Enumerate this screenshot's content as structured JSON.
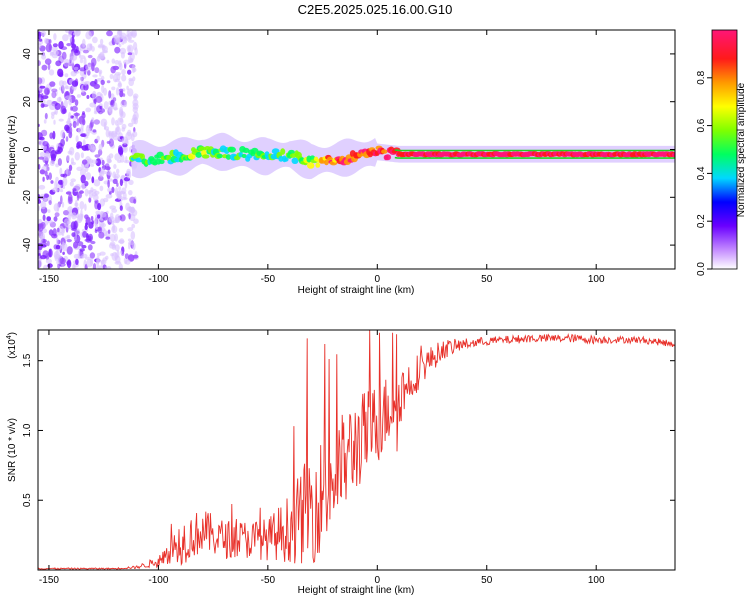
{
  "title": "C2E5.2025.025.16.00.G10",
  "chart_data": [
    {
      "type": "heatmap",
      "xlabel": "Height of straight line (km)",
      "ylabel": "Frequency (Hz)",
      "xlim": [
        -155,
        136
      ],
      "ylim": [
        -50,
        50
      ],
      "xticks": [
        -150,
        -100,
        -50,
        0,
        50,
        100
      ],
      "yticks": [
        -40,
        -20,
        0,
        20,
        40
      ],
      "colorbar": {
        "label": "Normalized spectral amplitude",
        "range": [
          0,
          1
        ],
        "ticks": [
          "0.0",
          "0.2",
          "0.4",
          "0.6",
          "0.8"
        ]
      },
      "ridge": {
        "x": [
          -112,
          -100,
          -90,
          -80,
          -70,
          -60,
          -50,
          -40,
          -30,
          -20,
          -10,
          0,
          10,
          50,
          75,
          90,
          100,
          136
        ],
        "y": [
          -4,
          -4,
          -3,
          -1,
          -1,
          -2,
          -3,
          -2,
          -5,
          -4,
          -3,
          -1,
          -2,
          -2,
          -2,
          -2,
          -2,
          -2
        ],
        "amplitude": [
          0.4,
          0.4,
          0.45,
          0.5,
          0.45,
          0.4,
          0.4,
          0.45,
          0.55,
          0.8,
          0.8,
          0.85,
          0.9,
          0.95,
          0.9,
          0.95,
          0.9,
          0.9
        ]
      },
      "noise_region_x": [
        -155,
        -110
      ],
      "grid": false
    },
    {
      "type": "line",
      "xlabel": "Height of straight line (km)",
      "ylabel": "SNR (10 * v/v)",
      "yscale_label": "(x10",
      "yscale_exp": "4",
      "yscale_close": ")",
      "xlim": [
        -155,
        136
      ],
      "ylim": [
        0,
        1.72
      ],
      "xticks": [
        -150,
        -100,
        -50,
        0,
        50,
        100
      ],
      "yticks": [
        "0.5",
        "1.0",
        "1.5"
      ],
      "series": [
        {
          "color": "#e8312a",
          "trend_x": [
            -155,
            -120,
            -110,
            -100,
            -90,
            -80,
            -70,
            -60,
            -50,
            -40,
            -30,
            -20,
            -10,
            0,
            10,
            20,
            30,
            40,
            50,
            60,
            70,
            80,
            90,
            100,
            110,
            120,
            136
          ],
          "trend_y": [
            0.01,
            0.01,
            0.02,
            0.06,
            0.2,
            0.28,
            0.22,
            0.22,
            0.22,
            0.3,
            0.45,
            0.65,
            0.9,
            1.05,
            1.25,
            1.45,
            1.58,
            1.62,
            1.64,
            1.65,
            1.66,
            1.66,
            1.66,
            1.65,
            1.65,
            1.65,
            1.62
          ],
          "noise_y": [
            0.005,
            0.005,
            0.01,
            0.04,
            0.17,
            0.16,
            0.14,
            0.14,
            0.15,
            0.25,
            0.42,
            0.4,
            0.35,
            0.3,
            0.22,
            0.12,
            0.07,
            0.04,
            0.03,
            0.03,
            0.03,
            0.03,
            0.03,
            0.03,
            0.025,
            0.025,
            0.025
          ],
          "spikes": [
            {
              "x": -32,
              "y": 1.66
            },
            {
              "x": -24,
              "y": 1.62
            },
            {
              "x": 1,
              "y": 1.7
            },
            {
              "x": 7,
              "y": 1.7
            },
            {
              "x": 9,
              "y": 0.85
            }
          ]
        }
      ],
      "grid": false
    }
  ]
}
